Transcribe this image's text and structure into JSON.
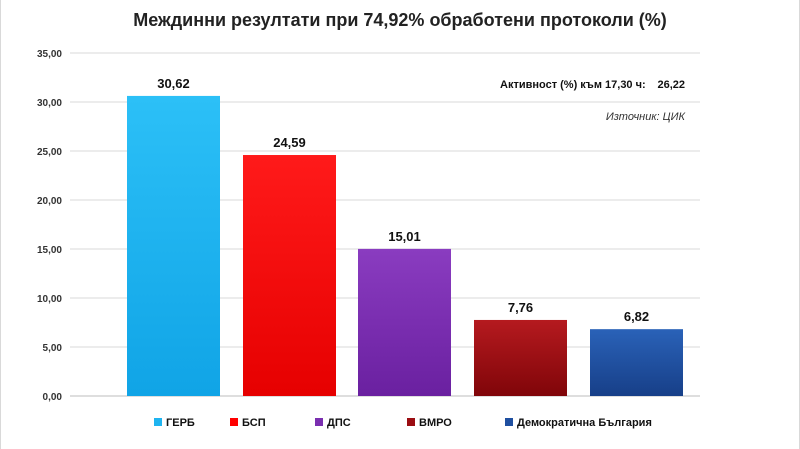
{
  "chart_data": {
    "type": "bar",
    "title": "Междинни резултати при 74,92% обработени протоколи (%)",
    "categories": [
      "ГЕРБ",
      "БСП",
      "ДПС",
      "ВМРО",
      "Демократична България"
    ],
    "values": [
      30.62,
      24.59,
      15.01,
      7.76,
      6.82
    ],
    "value_labels": [
      "30,62",
      "24,59",
      "15,01",
      "7,76",
      "6,82"
    ],
    "colors": [
      "#1fb4f0",
      "#ff0000",
      "#7a2fb0",
      "#9b0d12",
      "#1f4fa0"
    ],
    "ylim": [
      0,
      35
    ],
    "yticks": [
      "0,00",
      "5,00",
      "10,00",
      "15,00",
      "20,00",
      "25,00",
      "30,00",
      "35,00"
    ],
    "grid": true,
    "legend": "bottom",
    "xlabel": "",
    "ylabel": ""
  },
  "annotations": {
    "turnout_label": "Активност (%) към 17,30 ч:",
    "turnout_value": "26,22",
    "source": "Източник: ЦИК"
  }
}
